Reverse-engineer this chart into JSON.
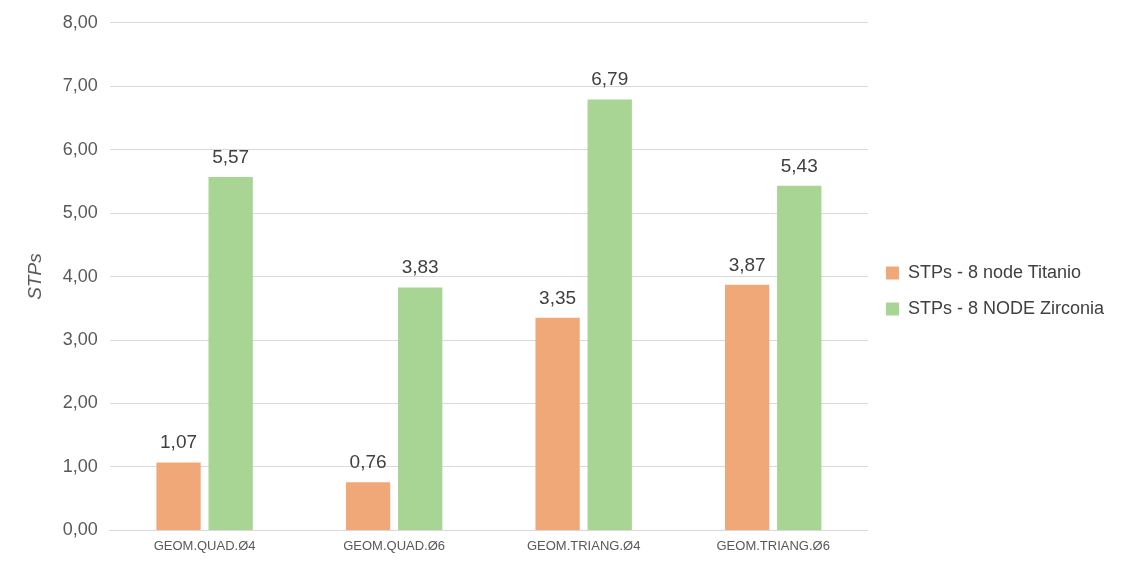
{
  "chart_data": {
    "type": "bar",
    "ylabel": "STPs",
    "categories": [
      "GEOM.QUAD.Ø4",
      "GEOM.QUAD.Ø6",
      "GEOM.TRIANG.Ø4",
      "GEOM.TRIANG.Ø6"
    ],
    "series": [
      {
        "name": "STPs - 8 node Titanio",
        "color": "#f0a878",
        "values": [
          1.07,
          0.76,
          3.35,
          3.87
        ],
        "value_labels": [
          "1,07",
          "0,76",
          "3,35",
          "3,87"
        ]
      },
      {
        "name": "STPs - 8 NODE Zirconia",
        "color": "#a8d494",
        "values": [
          5.57,
          3.83,
          6.79,
          5.43
        ],
        "value_labels": [
          "5,57",
          "3,83",
          "6,79",
          "5,43"
        ]
      }
    ],
    "ylim": [
      0,
      8
    ],
    "yticks": [
      {
        "value": 0,
        "label": "0,00"
      },
      {
        "value": 1,
        "label": "1,00"
      },
      {
        "value": 2,
        "label": "2,00"
      },
      {
        "value": 3,
        "label": "3,00"
      },
      {
        "value": 4,
        "label": "4,00"
      },
      {
        "value": 5,
        "label": "5,00"
      },
      {
        "value": 6,
        "label": "6,00"
      },
      {
        "value": 7,
        "label": "7,00"
      },
      {
        "value": 8,
        "label": "8,00"
      }
    ],
    "grid": "y",
    "legend": "right"
  }
}
